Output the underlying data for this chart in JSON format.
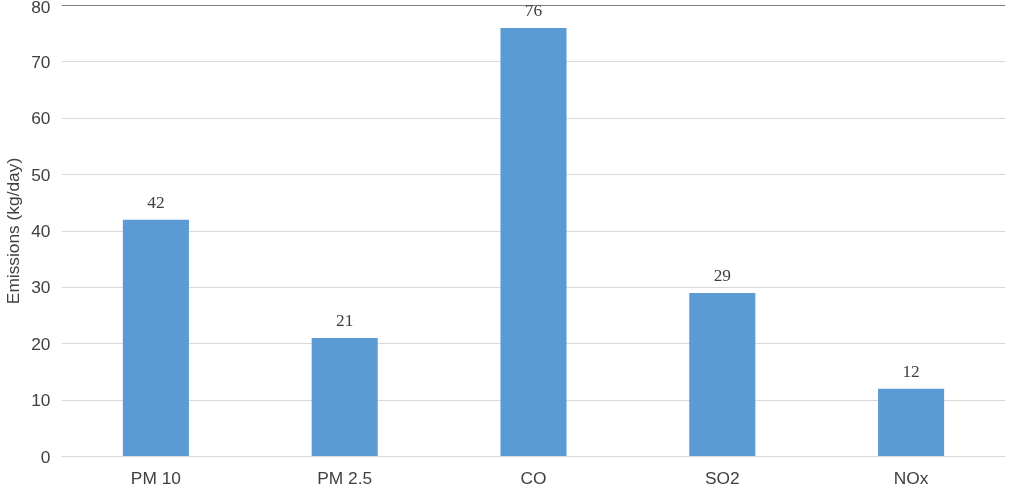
{
  "chart_data": {
    "type": "bar",
    "ylabel": "Emissions (kg/day)",
    "categories": [
      "PM 10",
      "PM 2.5",
      "CO",
      "SO2",
      "NOx"
    ],
    "values": [
      42,
      21,
      76,
      29,
      12
    ],
    "color": "#5b9bd5",
    "ylim": [
      0,
      80
    ],
    "yticks": [
      0,
      10,
      20,
      30,
      40,
      50,
      60,
      70,
      80
    ],
    "grid": "y",
    "data_labels": true,
    "ref_lines": [
      {
        "axis": "y",
        "value": 80,
        "color": "#000000"
      }
    ]
  }
}
